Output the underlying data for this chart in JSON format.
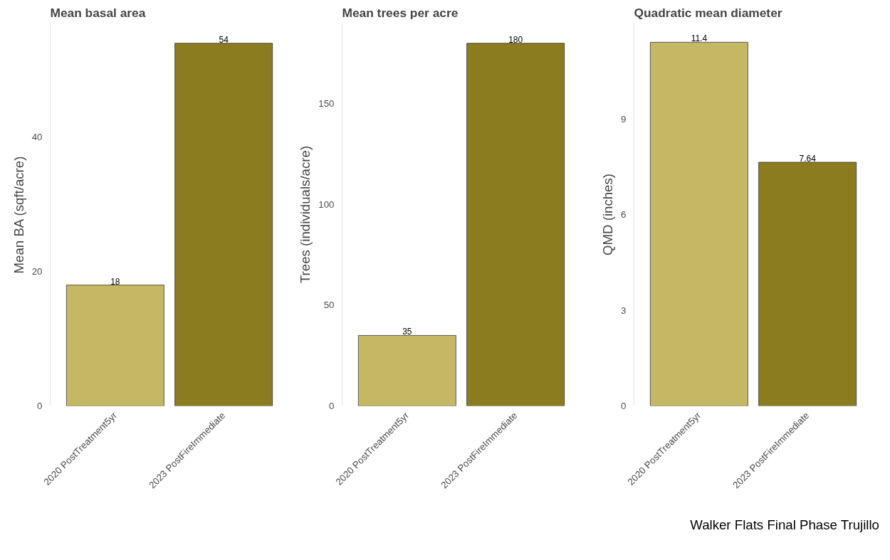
{
  "chart_data": [
    {
      "type": "bar",
      "title": "Mean basal area",
      "ylabel": "Mean BA (sqft/acre)",
      "categories": [
        "2020 PostTreatment5yr",
        "2023 PostFireImmediate"
      ],
      "values": [
        18,
        54
      ],
      "colors": [
        "#c4b865",
        "#8b7d1f"
      ],
      "ylim": [
        0,
        57
      ],
      "yticks": [
        0,
        20,
        40
      ],
      "data_labels": true,
      "grid": false
    },
    {
      "type": "bar",
      "title": "Mean trees per acre",
      "ylabel": "Trees (individuals/acre)",
      "categories": [
        "2020 PostTreatment5yr",
        "2023 PostFireImmediate"
      ],
      "values": [
        35,
        180
      ],
      "colors": [
        "#c4b865",
        "#8b7d1f"
      ],
      "ylim": [
        0,
        190
      ],
      "yticks": [
        0,
        50,
        100,
        150
      ],
      "data_labels": true,
      "grid": false
    },
    {
      "type": "bar",
      "title": "Quadratic mean diameter",
      "ylabel": "QMD (inches)",
      "categories": [
        "2020 PostTreatment5yr",
        "2023 PostFireImmediate"
      ],
      "values": [
        11.4,
        7.64
      ],
      "colors": [
        "#c4b865",
        "#8b7d1f"
      ],
      "ylim": [
        0,
        12
      ],
      "yticks": [
        0,
        3,
        6,
        9
      ],
      "data_labels": true,
      "grid": false,
      "annotations": [
        "Walker Flats Final Phase Trujillo"
      ]
    }
  ]
}
